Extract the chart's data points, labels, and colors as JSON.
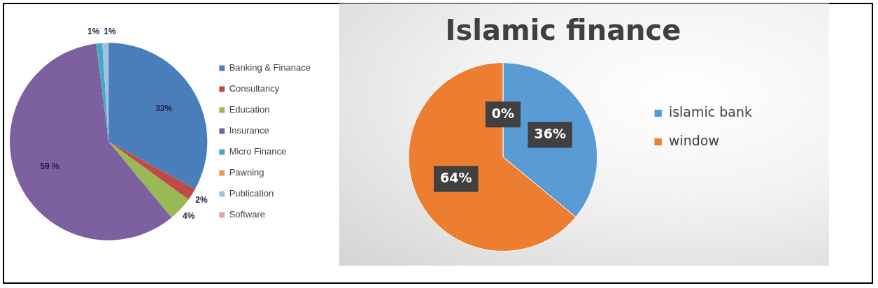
{
  "chart_data": [
    {
      "type": "pie",
      "categories": [
        "Banking & Finanace",
        "Consultancy",
        "Education",
        "Insurance",
        "Micro Finance",
        "Pawning",
        "Publication",
        "Software"
      ],
      "values": [
        33,
        2,
        4,
        59,
        1,
        0,
        1,
        0
      ],
      "colors": [
        "#4a7ebb",
        "#be4b48",
        "#98b954",
        "#7d60a0",
        "#46aac5",
        "#f79646",
        "#a5bfe0",
        "#e6a1a0"
      ],
      "value_labels": [
        "33%",
        "2%",
        "4%",
        "59 %",
        "1%",
        null,
        "1%",
        null
      ],
      "legend": "right"
    },
    {
      "type": "pie",
      "title": "Islamic finance",
      "categories": [
        "islamic bank",
        "window",
        null
      ],
      "values": [
        36,
        64,
        0
      ],
      "colors": [
        "#5b9bd5",
        "#ed7d31",
        "#a5a5a5"
      ],
      "value_labels": [
        "36%",
        "64%",
        "0%"
      ],
      "legend": "right"
    }
  ]
}
